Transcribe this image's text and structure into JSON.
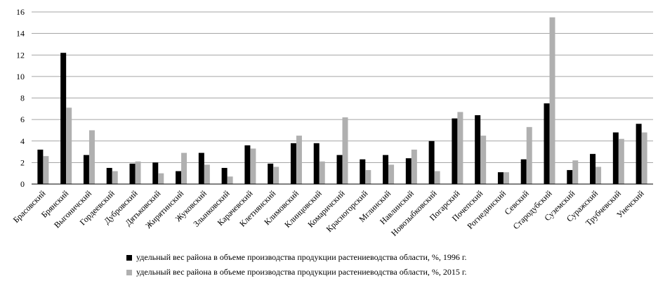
{
  "chart_data": {
    "type": "bar",
    "ylim": [
      0,
      16
    ],
    "yticks": [
      "0",
      "2",
      "4",
      "6",
      "8",
      "10",
      "12",
      "14",
      "16"
    ],
    "grid": true,
    "legend_position": "bottom",
    "categories": [
      "Брасовский",
      "Брянский",
      "Выгоничский",
      "Гордеевский",
      "Дубровский",
      "Дятьковский",
      "Жирятинский",
      "Жуковский",
      "Злынковский",
      "Карачевский",
      "Клетнянский",
      "Климовский",
      "Клинцовский",
      "Комаричский",
      "Красногорский",
      "Мглинский",
      "Навлинский",
      "Новозыбковский",
      "Погарский",
      "Почепский",
      "Рогнединский",
      "Севский",
      "Стародубский",
      "Суземский",
      "Суражский",
      "Трубчевский",
      "Унечский"
    ],
    "series": [
      {
        "name": "удельный вес района в объеме производства продукции растениеводства области, %, 1996 г.",
        "color": "#000000",
        "values": [
          3.2,
          12.2,
          2.7,
          1.5,
          1.9,
          2.0,
          1.2,
          2.9,
          1.5,
          3.6,
          1.9,
          3.8,
          3.8,
          2.7,
          2.3,
          2.7,
          2.4,
          4.0,
          6.1,
          6.4,
          1.1,
          2.3,
          7.5,
          1.3,
          2.8,
          4.8,
          5.6
        ]
      },
      {
        "name": "удельный вес района в объеме производства продукции растениеводства области, %, 2015 г.",
        "color": "#b0b0b0",
        "values": [
          2.6,
          7.1,
          5.0,
          1.2,
          2.1,
          1.0,
          2.9,
          1.8,
          0.7,
          3.3,
          1.6,
          4.5,
          2.1,
          6.2,
          1.3,
          1.8,
          3.2,
          1.2,
          6.7,
          4.5,
          1.1,
          5.3,
          15.5,
          2.2,
          1.6,
          4.2,
          4.8
        ]
      }
    ]
  }
}
